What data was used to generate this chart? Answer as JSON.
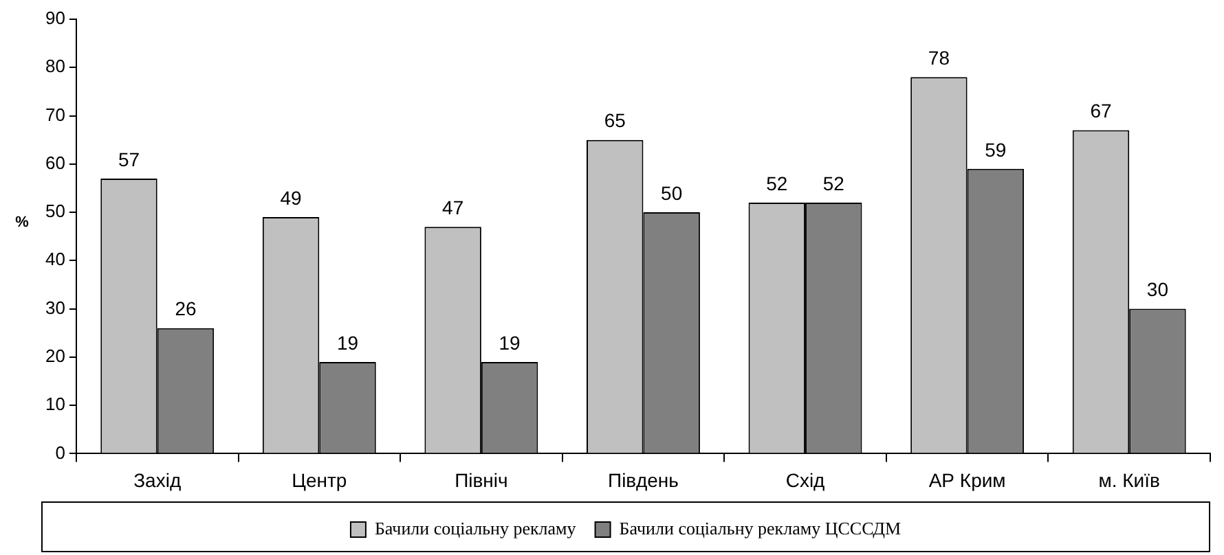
{
  "chart_data": {
    "type": "bar",
    "ylabel": "%",
    "categories": [
      "Захід",
      "Центр",
      "Північ",
      "Південь",
      "Схід",
      "АР Крим",
      "м. Київ"
    ],
    "series": [
      {
        "name": "Бачили соціальну рекламу",
        "color": "#c0c0c0",
        "values": [
          57,
          49,
          47,
          65,
          52,
          78,
          67
        ]
      },
      {
        "name": "Бачили соціальну рекламу ЦСССДМ",
        "color": "#808080",
        "values": [
          26,
          19,
          19,
          50,
          52,
          59,
          30
        ]
      }
    ],
    "ylim": [
      0,
      90
    ],
    "yticks": [
      0,
      10,
      20,
      30,
      40,
      50,
      60,
      70,
      80,
      90
    ],
    "grid": false,
    "legend": "bottom",
    "data_labels": true
  }
}
